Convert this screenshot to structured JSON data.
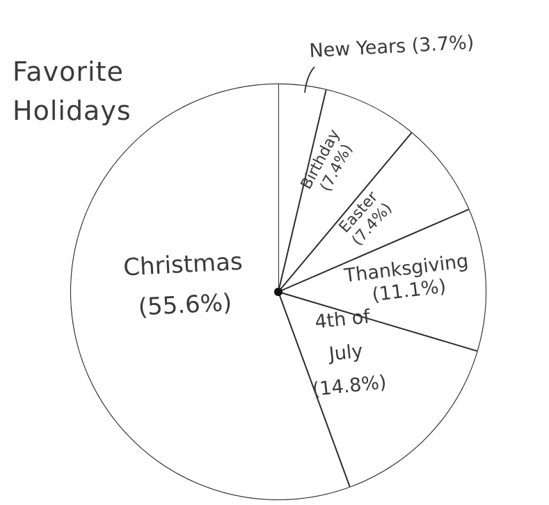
{
  "chart_data": {
    "type": "pie",
    "title_lines": [
      "Favorite",
      "Holidays"
    ],
    "slices": [
      {
        "name": "New Years",
        "value": 3.7,
        "label_lines": [
          "New Years (3.7%)"
        ]
      },
      {
        "name": "Birthday",
        "value": 7.4,
        "label_lines": [
          "Birthday",
          "(7.4%)"
        ]
      },
      {
        "name": "Easter",
        "value": 7.4,
        "label_lines": [
          "Easter",
          "(7.4%)"
        ]
      },
      {
        "name": "Thanksgiving",
        "value": 11.1,
        "label_lines": [
          "Thanksgiving",
          "(11.1%)"
        ]
      },
      {
        "name": "4th of July",
        "value": 14.8,
        "label_lines": [
          "4th of",
          "July",
          "(14.8%)"
        ]
      },
      {
        "name": "Christmas",
        "value": 55.6,
        "label_lines": [
          "Christmas",
          "(55.6%)"
        ]
      }
    ],
    "colors": {
      "line": "#2b2b2b",
      "text": "#3a3a3a",
      "fill": "#ffffff"
    }
  }
}
